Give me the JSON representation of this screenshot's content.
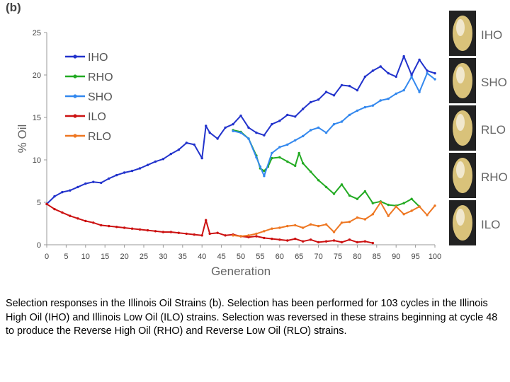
{
  "chart_data": {
    "type": "line",
    "panel_label": "(b)",
    "xlabel": "Generation",
    "ylabel": "% Oil",
    "xlim": [
      0,
      100
    ],
    "ylim": [
      0,
      25
    ],
    "xticks": [
      0,
      5,
      10,
      15,
      20,
      25,
      30,
      35,
      40,
      45,
      50,
      55,
      60,
      65,
      70,
      75,
      80,
      85,
      90,
      95,
      100
    ],
    "yticks": [
      0,
      5,
      10,
      15,
      20,
      25
    ],
    "legend_position": "top-left",
    "series": [
      {
        "name": "IHO",
        "color": "#2233cc",
        "x": [
          0,
          2,
          4,
          6,
          8,
          10,
          12,
          14,
          16,
          18,
          20,
          22,
          24,
          26,
          28,
          30,
          32,
          34,
          36,
          38,
          40,
          41,
          42,
          44,
          46,
          48,
          50,
          52,
          54,
          56,
          58,
          60,
          62,
          64,
          66,
          68,
          70,
          72,
          74,
          76,
          78,
          80,
          82,
          84,
          86,
          88,
          90,
          92,
          94,
          96,
          98,
          100
        ],
        "y": [
          4.8,
          5.7,
          6.2,
          6.4,
          6.8,
          7.2,
          7.4,
          7.3,
          7.8,
          8.2,
          8.5,
          8.7,
          9.0,
          9.4,
          9.8,
          10.1,
          10.7,
          11.2,
          12.0,
          11.8,
          10.2,
          14.0,
          13.2,
          12.5,
          13.8,
          14.2,
          15.2,
          13.8,
          13.2,
          12.9,
          14.2,
          14.6,
          15.3,
          15.1,
          16.0,
          16.8,
          17.1,
          18.0,
          17.6,
          18.8,
          18.7,
          18.2,
          19.8,
          20.5,
          21.0,
          20.2,
          19.8,
          22.2,
          20.0,
          21.8,
          20.5,
          20.2
        ]
      },
      {
        "name": "RHO",
        "color": "#22aa22",
        "x": [
          48,
          50,
          52,
          54,
          55,
          56,
          57,
          58,
          60,
          62,
          64,
          65,
          66,
          68,
          70,
          72,
          74,
          76,
          78,
          80,
          82,
          84,
          86,
          88,
          90,
          92,
          94,
          96
        ],
        "y": [
          13.5,
          13.3,
          12.5,
          10.5,
          9.0,
          8.7,
          9.2,
          10.2,
          10.3,
          9.8,
          9.3,
          10.8,
          9.6,
          8.6,
          7.6,
          6.8,
          6.0,
          7.1,
          5.8,
          5.4,
          6.3,
          4.9,
          5.1,
          4.7,
          4.6,
          4.9,
          5.4,
          4.5
        ]
      },
      {
        "name": "SHO",
        "color": "#3388ee",
        "x": [
          48,
          50,
          52,
          54,
          55,
          56,
          58,
          60,
          62,
          64,
          66,
          68,
          70,
          72,
          74,
          76,
          78,
          80,
          82,
          84,
          86,
          88,
          90,
          92,
          94,
          96,
          98,
          100
        ],
        "y": [
          13.4,
          13.2,
          12.5,
          10.3,
          9.2,
          8.1,
          10.8,
          11.5,
          11.8,
          12.3,
          12.8,
          13.5,
          13.8,
          13.2,
          14.2,
          14.5,
          15.3,
          15.8,
          16.2,
          16.4,
          17.0,
          17.2,
          17.8,
          18.2,
          19.8,
          18.0,
          20.2,
          19.5
        ]
      },
      {
        "name": "ILO",
        "color": "#cc1111",
        "x": [
          0,
          2,
          4,
          6,
          8,
          10,
          12,
          14,
          16,
          18,
          20,
          22,
          24,
          26,
          28,
          30,
          32,
          34,
          36,
          38,
          40,
          41,
          42,
          44,
          46,
          48,
          50,
          52,
          54,
          56,
          58,
          60,
          62,
          64,
          66,
          68,
          70,
          72,
          74,
          76,
          78,
          80,
          82,
          84
        ],
        "y": [
          4.8,
          4.2,
          3.8,
          3.4,
          3.1,
          2.8,
          2.6,
          2.3,
          2.2,
          2.1,
          2.0,
          1.9,
          1.8,
          1.7,
          1.6,
          1.5,
          1.5,
          1.4,
          1.3,
          1.2,
          1.1,
          2.9,
          1.3,
          1.4,
          1.1,
          1.2,
          1.0,
          0.9,
          1.0,
          0.8,
          0.7,
          0.6,
          0.5,
          0.7,
          0.4,
          0.6,
          0.3,
          0.4,
          0.5,
          0.3,
          0.6,
          0.3,
          0.4,
          0.2
        ]
      },
      {
        "name": "RLO",
        "color": "#ee7722",
        "x": [
          48,
          50,
          52,
          54,
          56,
          58,
          60,
          62,
          64,
          66,
          68,
          70,
          72,
          74,
          76,
          78,
          80,
          82,
          84,
          86,
          88,
          90,
          92,
          94,
          96,
          98,
          100
        ],
        "y": [
          1.1,
          1.0,
          1.1,
          1.3,
          1.6,
          1.9,
          2.0,
          2.2,
          2.3,
          2.0,
          2.4,
          2.2,
          2.4,
          1.5,
          2.6,
          2.7,
          3.2,
          3.0,
          3.6,
          5.0,
          3.4,
          4.5,
          3.6,
          4.0,
          4.5,
          3.5,
          4.6
        ]
      }
    ],
    "kernel_labels": [
      "IHO",
      "SHO",
      "RLO",
      "RHO",
      "ILO"
    ]
  },
  "caption": "Selection responses in the Illinois Oil Strains (b). Selection has been performed for 103 cycles in the Illinois High Oil (IHO) and Illinois Low Oil (ILO) strains. Selection was reversed in these strains beginning at cycle 48 to produce the Reverse High Oil (RHO) and Reverse Low Oil (RLO) strains.",
  "colors": {
    "axis": "#999999",
    "kernel_background": "#222222",
    "kernel_body": "#d9c27a",
    "kernel_highlight": "#f4efdd"
  }
}
